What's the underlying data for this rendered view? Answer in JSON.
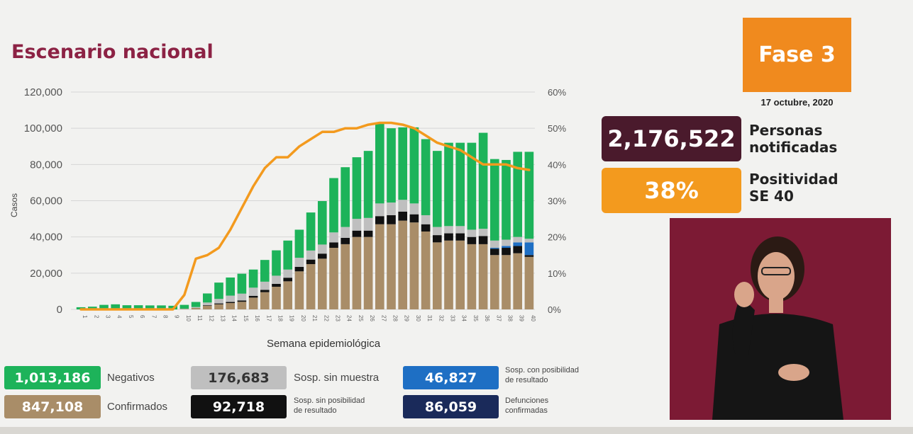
{
  "title": "Escenario nacional",
  "phase": "Fase 3",
  "date": "17 octubre, 2020",
  "notified": {
    "value": "2,176,522",
    "label_line1": "Personas",
    "label_line2": "notificadas"
  },
  "positivity": {
    "value": "38%",
    "label_line1": "Positividad",
    "label_line2": "SE 40"
  },
  "legend": {
    "negativos": {
      "value": "1,013,186",
      "label": "Negativos"
    },
    "confirmados": {
      "value": "847,108",
      "label": "Confirmados"
    },
    "sosp_sin_muestra": {
      "value": "176,683",
      "label": "Sosp. sin muestra"
    },
    "sosp_sin_posibilidad": {
      "value": "92,718",
      "label_line1": "Sosp. sin posibilidad",
      "label_line2": "de resultado"
    },
    "sosp_con_posibilidad": {
      "value": "46,827",
      "label_line1": "Sosp. con posibilidad",
      "label_line2": "de resultado"
    },
    "defunciones": {
      "value": "86,059",
      "label_line1": "Defunciones",
      "label_line2": "confirmadas"
    }
  },
  "colors": {
    "title": "#8c2244",
    "negativos": "#1db35a",
    "confirmados": "#a98d68",
    "sosp_sin_muestra": "#bfbfbf",
    "sosp_sin_posibilidad": "#111111",
    "sosp_con_posibilidad": "#1e6fc4",
    "defunciones": "#1a2a5a",
    "positividad": "#f39a1e",
    "phase": "#f08a1e",
    "notified": "#4a1a2c"
  },
  "chart_data": {
    "type": "bar",
    "stacked": true,
    "xlabel": "Semana epidemiológica",
    "ylabel": "Casos",
    "ylim": [
      0,
      120000
    ],
    "y2lim": [
      0,
      60
    ],
    "yticks": [
      "0",
      "20,000",
      "40,000",
      "60,000",
      "80,000",
      "100,000",
      "120,000"
    ],
    "y2ticks": [
      "0%",
      "10%",
      "20%",
      "30%",
      "40%",
      "50%",
      "60%"
    ],
    "grid": true,
    "categories": [
      "1",
      "2",
      "3",
      "4",
      "5",
      "6",
      "7",
      "8",
      "9",
      "10",
      "11",
      "12",
      "13",
      "14",
      "15",
      "16",
      "17",
      "18",
      "19",
      "20",
      "21",
      "22",
      "23",
      "24",
      "25",
      "26",
      "27",
      "28",
      "29",
      "30",
      "31",
      "32",
      "33",
      "34",
      "35",
      "36",
      "37",
      "38",
      "39",
      "40"
    ],
    "series": [
      {
        "name": "Confirmados",
        "values": [
          0,
          0,
          0,
          0,
          0,
          0,
          0,
          0,
          0,
          200,
          800,
          2000,
          2800,
          3500,
          4200,
          6500,
          9500,
          12500,
          15500,
          21000,
          25000,
          28000,
          34000,
          36000,
          40000,
          40000,
          47000,
          47000,
          49000,
          48000,
          43000,
          37000,
          38000,
          38000,
          36000,
          36000,
          30000,
          30000,
          31000,
          29000
        ]
      },
      {
        "name": "Sosp. sin posibilidad de resultado",
        "values": [
          0,
          0,
          0,
          0,
          0,
          0,
          0,
          0,
          0,
          0,
          0,
          300,
          500,
          600,
          700,
          1000,
          1300,
          1600,
          2000,
          2500,
          2500,
          2800,
          3000,
          3500,
          3500,
          3500,
          4500,
          5000,
          5000,
          4500,
          4000,
          4000,
          4000,
          4000,
          4000,
          4500,
          3500,
          4000,
          4000,
          1000
        ]
      },
      {
        "name": "Sosp. con posibilidad de resultado",
        "values": [
          0,
          0,
          0,
          0,
          0,
          0,
          0,
          0,
          0,
          0,
          0,
          0,
          0,
          0,
          0,
          0,
          0,
          0,
          0,
          0,
          0,
          0,
          0,
          0,
          0,
          0,
          0,
          0,
          0,
          0,
          0,
          0,
          0,
          0,
          0,
          0,
          500,
          1000,
          2000,
          7000
        ]
      },
      {
        "name": "Sosp. sin muestra",
        "values": [
          0,
          0,
          0,
          0,
          0,
          0,
          0,
          0,
          0,
          200,
          500,
          1500,
          2500,
          3500,
          3800,
          4500,
          4500,
          4500,
          4500,
          5000,
          5000,
          5000,
          5500,
          6000,
          6500,
          7000,
          7000,
          7000,
          6500,
          6000,
          5000,
          4500,
          4000,
          4000,
          4000,
          4000,
          4000,
          3500,
          3000,
          2000
        ]
      },
      {
        "name": "Negativos",
        "values": [
          1200,
          1500,
          2500,
          2800,
          2300,
          2300,
          2200,
          2200,
          2000,
          2100,
          2800,
          5000,
          9000,
          10000,
          11000,
          10000,
          12000,
          14000,
          16000,
          15500,
          21000,
          24000,
          30000,
          33000,
          34000,
          37000,
          44000,
          41000,
          40000,
          42000,
          42000,
          42000,
          46000,
          46000,
          48000,
          53000,
          45000,
          44000,
          47000,
          48000
        ]
      }
    ],
    "line": {
      "name": "Positividad",
      "axis": "right",
      "values": [
        0,
        0,
        0,
        0,
        0,
        0,
        0,
        0,
        0,
        4,
        14,
        15,
        17,
        22,
        28,
        34,
        39,
        42,
        42,
        45,
        47,
        49,
        49,
        50,
        50,
        51,
        51.5,
        51.5,
        51,
        50,
        48,
        46,
        45,
        44,
        42,
        40,
        40,
        40,
        39,
        38.5
      ]
    }
  }
}
